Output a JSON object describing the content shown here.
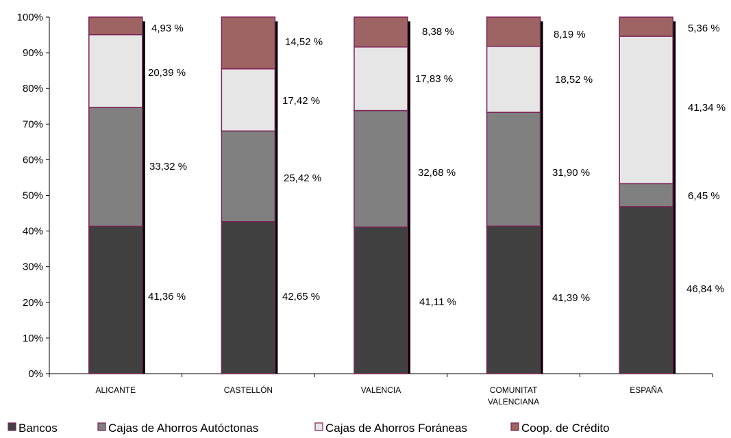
{
  "chart_data": {
    "type": "bar",
    "stacked": true,
    "percent_stacked": true,
    "categories": [
      "ALICANTE",
      "CASTELLÓN",
      "VALENCIA",
      "COMUNITAT VALENCIANA",
      "ESPAÑA"
    ],
    "series": [
      {
        "name": "Bancos",
        "color": "#404040",
        "values": [
          41.36,
          42.65,
          41.11,
          41.39,
          46.84
        ],
        "labels": [
          "41,36 %",
          "42,65 %",
          "41,11 %",
          "41,39 %",
          "46,84 %"
        ]
      },
      {
        "name": "Cajas de Ahorros Autóctonas",
        "color": "#808080",
        "values": [
          33.32,
          25.42,
          32.68,
          31.9,
          6.45
        ],
        "labels": [
          "33,32 %",
          "25,42 %",
          "32,68 %",
          "31,90 %",
          "6,45 %"
        ]
      },
      {
        "name": "Cajas de Ahorros Foráneas",
        "color": "#e6e6e6",
        "values": [
          20.39,
          17.42,
          17.83,
          18.52,
          41.34
        ],
        "labels": [
          "20,39 %",
          "17,42 %",
          "17,83 %",
          "18,52 %",
          "41,34 %"
        ]
      },
      {
        "name": "Coop. de Crédito",
        "color": "#9e6464",
        "values": [
          4.93,
          14.52,
          8.38,
          8.19,
          5.36
        ],
        "labels": [
          "4,93 %",
          "14,52 %",
          "8,38 %",
          "8,19 %",
          "5,36 %"
        ]
      }
    ],
    "y_ticks": [
      "0%",
      "10%",
      "20%",
      "30%",
      "40%",
      "50%",
      "60%",
      "70%",
      "80%",
      "90%",
      "100%"
    ],
    "ylim": [
      0,
      100
    ],
    "bar_border_color": "#7b2257",
    "grid": false,
    "legend_position": "bottom",
    "title": "",
    "xlabel": "",
    "ylabel": ""
  }
}
